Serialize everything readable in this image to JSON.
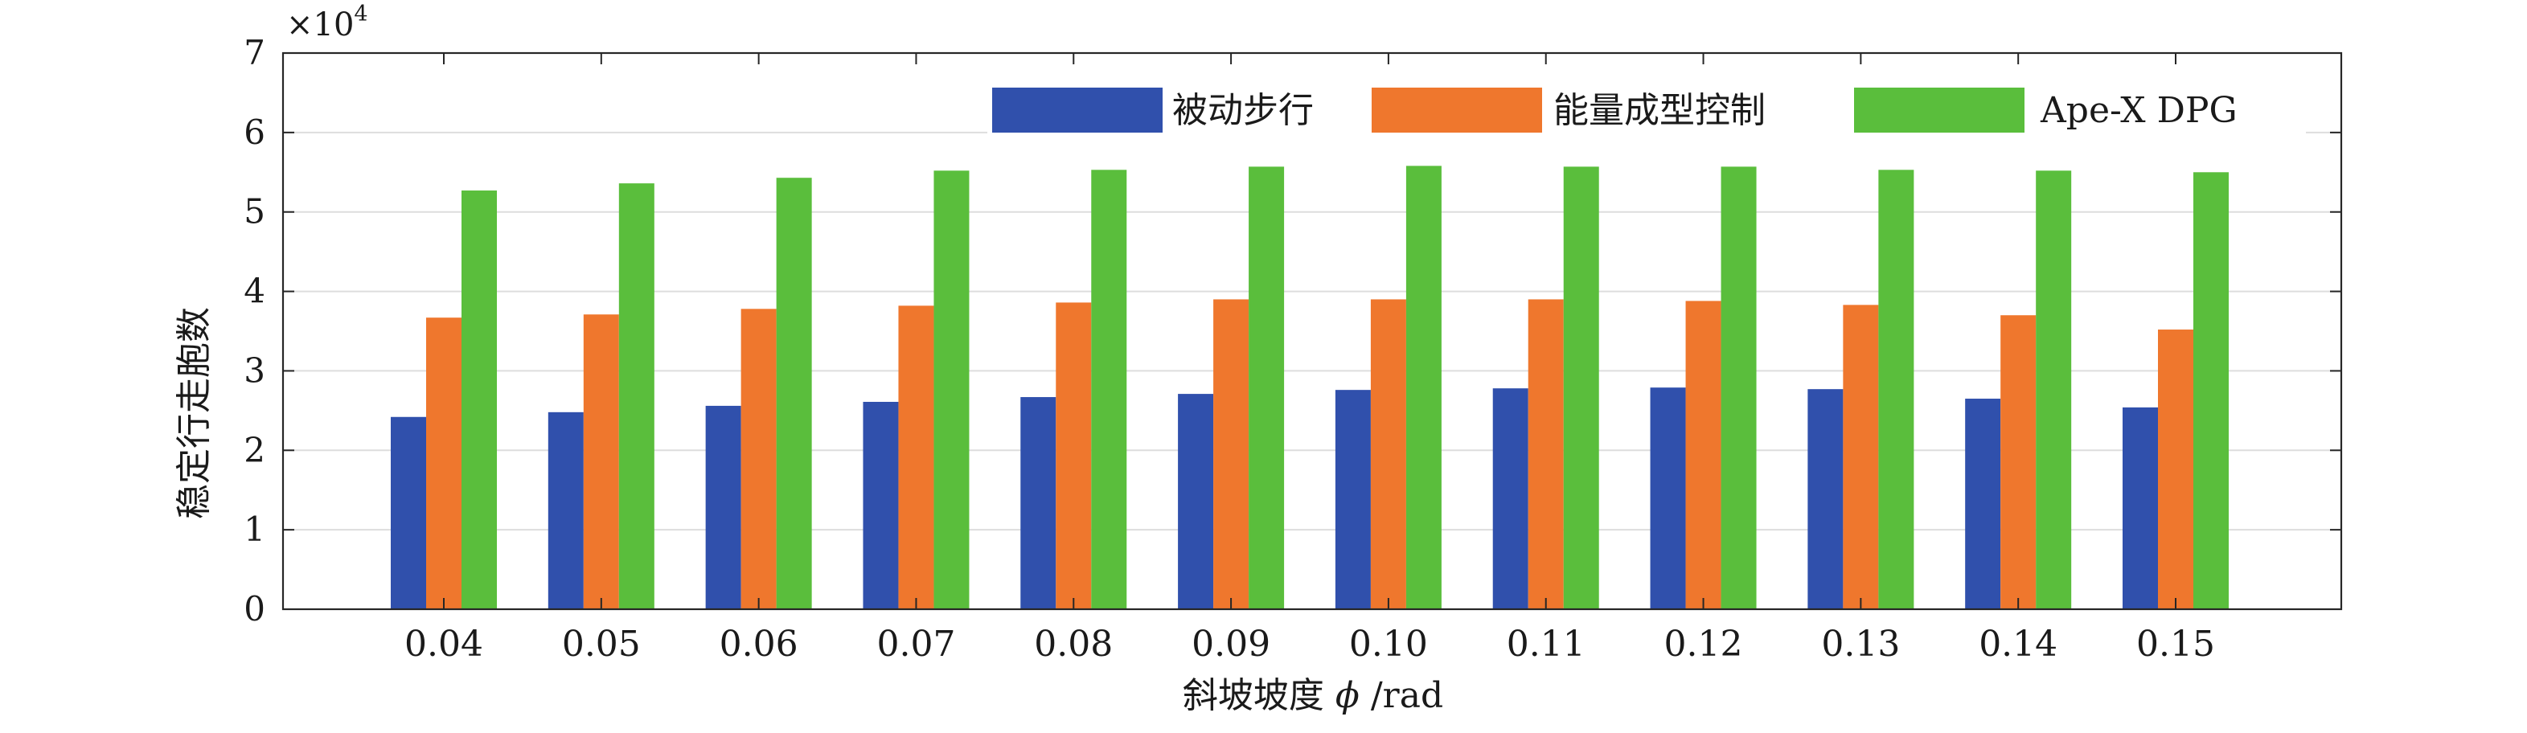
{
  "chart_data": {
    "type": "bar",
    "categories": [
      "0.04",
      "0.05",
      "0.06",
      "0.07",
      "0.08",
      "0.09",
      "0.10",
      "0.11",
      "0.12",
      "0.13",
      "0.14",
      "0.15"
    ],
    "series": [
      {
        "name": "被动步行",
        "color": "#3050ac",
        "values": [
          2.42,
          2.48,
          2.56,
          2.61,
          2.67,
          2.71,
          2.76,
          2.78,
          2.79,
          2.77,
          2.65,
          2.54
        ]
      },
      {
        "name": "能量成型控制",
        "color": "#ef772d",
        "values": [
          3.67,
          3.71,
          3.78,
          3.82,
          3.86,
          3.9,
          3.9,
          3.9,
          3.88,
          3.83,
          3.7,
          3.52
        ]
      },
      {
        "name": "Ape-X DPG",
        "color": "#5abe3c",
        "values": [
          5.27,
          5.36,
          5.43,
          5.52,
          5.53,
          5.57,
          5.58,
          5.57,
          5.57,
          5.53,
          5.52,
          5.5
        ]
      }
    ],
    "scale_label": "×10",
    "scale_exponent": "4",
    "xlabel_text": "斜坡坡度",
    "xlabel_symbol": "ϕ",
    "xlabel_unit": "/rad",
    "ylabel": "稳定行走胞数",
    "yticks": [
      "0",
      "1",
      "2",
      "3",
      "4",
      "5",
      "6",
      "7"
    ],
    "ylim": [
      0,
      7
    ],
    "grid": true,
    "legend_position": "top-right"
  }
}
